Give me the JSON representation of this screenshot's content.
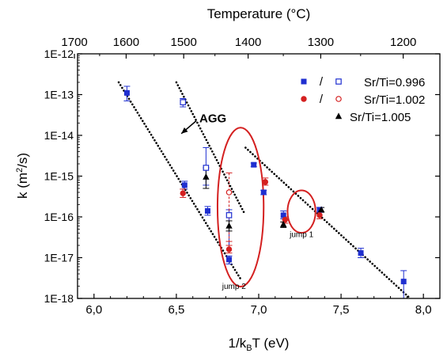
{
  "chart_data": {
    "type": "scatter",
    "xlabel": "1/k",
    "xlabel_sub": "B",
    "xlabel_tail": "T (eV)",
    "ylabel": "k (m",
    "ylabel_sup": "2",
    "ylabel_tail": "/s)",
    "top_axis_label": "Temperature (°C)",
    "xlim": [
      5.9,
      8.1
    ],
    "ylim_log10": [
      -18,
      -12
    ],
    "y_scale": "log",
    "x_ticks": [
      "6,0",
      "6,5",
      "7,0",
      "7,5",
      "8,0"
    ],
    "x_tick_values": [
      6.0,
      6.5,
      7.0,
      7.5,
      8.0
    ],
    "y_ticks": [
      "1E-12",
      "1E-13",
      "1E-14",
      "1E-15",
      "1E-16",
      "1E-17",
      "1E-18"
    ],
    "y_tick_exponents": [
      -12,
      -13,
      -14,
      -15,
      -16,
      -17,
      -18
    ],
    "top_ticks": [
      "1700",
      "1600",
      "1500",
      "1400",
      "1300",
      "1200"
    ],
    "top_tick_celsius": [
      1700,
      1600,
      1500,
      1400,
      1300,
      1200
    ],
    "grid": false,
    "legend_position": "top-right",
    "legend": {
      "separator": "/",
      "entries": [
        {
          "label": "Sr/Ti=0.996",
          "color": "#1f2fd0",
          "markers": [
            "filled-square",
            "open-square"
          ]
        },
        {
          "label": "Sr/Ti=1.002",
          "color": "#d42020",
          "markers": [
            "filled-circle",
            "open-circle"
          ]
        },
        {
          "label": "Sr/Ti=1.005",
          "color": "#000000",
          "markers": [
            "filled-triangle"
          ]
        }
      ]
    },
    "series": [
      {
        "name": "Sr/Ti=0.996",
        "marker": "filled-square",
        "color": "#1f2fd0",
        "x": [
          6.2,
          6.55,
          6.69,
          6.82,
          6.97,
          7.03,
          7.15,
          7.37,
          7.62,
          7.88
        ],
        "y": [
          1.1e-13,
          6e-16,
          1.4e-16,
          9e-18,
          1.9e-15,
          4e-16,
          1.1e-16,
          1.5e-16,
          1.3e-17,
          2.6e-18
        ],
        "err_up": [
          1.6e-13,
          7.5e-16,
          1.8e-16,
          1.1e-17,
          2.1e-15,
          4.5e-16,
          1.4e-16,
          1.7e-16,
          1.7e-17,
          4.8e-18
        ],
        "err_dn": [
          7e-14,
          4.8e-16,
          1.1e-16,
          7e-18,
          1.7e-15,
          3.5e-16,
          9e-17,
          1.3e-16,
          1e-17,
          1e-18
        ]
      },
      {
        "name": "Sr/Ti=0.996",
        "marker": "open-square",
        "color": "#1f2fd0",
        "x": [
          6.54,
          6.68,
          6.82
        ],
        "y": [
          6.5e-14,
          1.6e-15,
          1.1e-16
        ],
        "err_up": [
          8e-14,
          5e-15,
          1.5e-16
        ],
        "err_dn": [
          5e-14,
          6e-16,
          2e-17
        ]
      },
      {
        "name": "Sr/Ti=1.002",
        "marker": "filled-circle",
        "color": "#d42020",
        "x": [
          6.54,
          6.82,
          7.04,
          7.16,
          7.37
        ],
        "y": [
          3.8e-16,
          1.6e-17,
          7.2e-16,
          8.5e-17,
          1.1e-16
        ],
        "err_up": [
          4.8e-16,
          2e-17,
          9e-16,
          1e-16,
          1.3e-16
        ],
        "err_dn": [
          3e-16,
          1.3e-17,
          6e-16,
          7e-17,
          9e-17
        ]
      },
      {
        "name": "Sr/Ti=1.002",
        "marker": "open-circle",
        "color": "#d42020",
        "x": [
          6.82
        ],
        "y": [
          4e-16
        ],
        "err_up": [
          1.2e-15
        ],
        "err_dn": [
          2.5e-17
        ]
      },
      {
        "name": "Sr/Ti=1.005",
        "marker": "filled-triangle",
        "color": "#000000",
        "x": [
          6.68,
          6.82,
          7.15,
          7.38
        ],
        "y": [
          9.5e-16,
          6e-17,
          6.5e-17,
          1.5e-16
        ],
        "err_up": [
          1.6e-15,
          8e-17,
          7.5e-17,
          1.7e-16
        ],
        "err_dn": [
          5e-16,
          4.5e-17,
          5.5e-17,
          1.3e-16
        ]
      }
    ],
    "fit_lines": [
      {
        "x": [
          6.15,
          6.89
        ],
        "y": [
          2e-13,
          3e-18
        ]
      },
      {
        "x": [
          6.5,
          6.91
        ],
        "y": [
          2e-13,
          1.3e-16
        ]
      },
      {
        "x": [
          6.92,
          7.92
        ],
        "y": [
          5e-15,
          1e-18
        ]
      }
    ],
    "annotations": [
      {
        "text": "AGG",
        "x": 6.64,
        "y": 2.6e-14,
        "arrow_to_x": 6.53,
        "arrow_to_y": 1.1e-14
      },
      {
        "text": "jump 1",
        "x": 7.26,
        "y": 3.2e-17,
        "ellipse": {
          "cx": 7.26,
          "cy_log10": -15.87,
          "rx": 0.085,
          "ry_dec": 0.52
        }
      },
      {
        "text": "jump 2",
        "x": 6.85,
        "y": 1.7e-18,
        "ellipse": {
          "cx": 6.89,
          "cy_log10": -15.76,
          "rx": 0.14,
          "ry_dec": 1.95
        }
      }
    ]
  }
}
